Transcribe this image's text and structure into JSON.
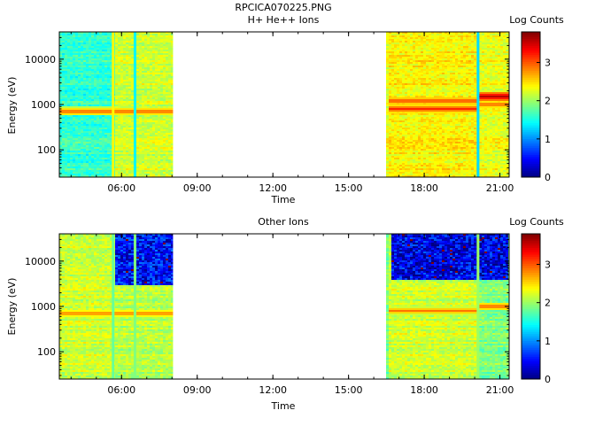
{
  "figure_title": "RPCICA070225.PNG",
  "colors": {
    "empty": "#ffffff",
    "axis": "#000000"
  },
  "chart_data": [
    {
      "type": "heatmap",
      "title": "H+ He++ Ions",
      "xlabel": "Time",
      "ylabel": "Energy (eV)",
      "xlim": [
        "03:32",
        "21:22"
      ],
      "x_ticks": [
        "06:00",
        "09:00",
        "12:00",
        "15:00",
        "18:00",
        "21:00"
      ],
      "ylim": [
        25,
        40000
      ],
      "yscale": "log",
      "y_ticks": [
        "100",
        "1000",
        "10000"
      ],
      "colorbar": {
        "label": "Log Counts",
        "range": [
          0,
          3.8
        ],
        "ticks": [
          "0",
          "1",
          "2",
          "3"
        ]
      },
      "data_intervals": [
        [
          "03:32",
          "08:01"
        ],
        [
          "16:30",
          "21:22"
        ]
      ],
      "background_level": {
        "03:32-05:40": 1.6,
        "05:40-08:01": 2.2,
        "16:30-20:10": 2.4,
        "20:10-21:22": 2.3
      },
      "bands": [
        {
          "from": "03:32",
          "to": "08:01",
          "energy_eV": 700,
          "level": 3.0
        },
        {
          "from": "16:30",
          "to": "20:10",
          "energy_eV": 1200,
          "level": 3.1
        },
        {
          "from": "16:30",
          "to": "20:10",
          "energy_eV": 800,
          "level": 3.2
        },
        {
          "from": "20:10",
          "to": "21:22",
          "energy_eV": 1500,
          "level": 3.6
        },
        {
          "from": "20:10",
          "to": "21:22",
          "energy_eV": 1000,
          "level": 3.0
        }
      ],
      "vertical_streaks": [
        {
          "time": "05:40",
          "level": 2.4
        },
        {
          "time": "06:32",
          "level": 1.4
        },
        {
          "time": "20:08",
          "level": 1.3
        }
      ]
    },
    {
      "type": "heatmap",
      "title": "Other Ions",
      "xlabel": "Time",
      "ylabel": "Energy (eV)",
      "xlim": [
        "03:32",
        "21:22"
      ],
      "x_ticks": [
        "06:00",
        "09:00",
        "12:00",
        "15:00",
        "18:00",
        "21:00"
      ],
      "ylim": [
        25,
        40000
      ],
      "yscale": "log",
      "y_ticks": [
        "100",
        "1000",
        "10000"
      ],
      "colorbar": {
        "label": "Log Counts",
        "range": [
          0,
          3.8
        ],
        "ticks": [
          "0",
          "1",
          "2",
          "3"
        ]
      },
      "data_intervals": [
        [
          "03:32",
          "08:01"
        ],
        [
          "16:30",
          "21:22"
        ]
      ],
      "background_level": {
        "03:32-05:40": 2.2,
        "05:40-08:01": 2.1,
        "16:30-20:10": 2.2,
        "20:10-21:22": 1.9
      },
      "high_energy_depletion": [
        {
          "from": "05:40",
          "to": "08:01",
          "above_eV": 3000,
          "level": 0.5
        },
        {
          "from": "16:40",
          "to": "21:15",
          "above_eV": 4000,
          "level": 0.4
        }
      ],
      "bands": [
        {
          "from": "03:32",
          "to": "08:01",
          "energy_eV": 700,
          "level": 2.9
        },
        {
          "from": "16:30",
          "to": "20:10",
          "energy_eV": 800,
          "level": 2.9
        },
        {
          "from": "20:10",
          "to": "21:22",
          "energy_eV": 1000,
          "level": 3.0
        }
      ],
      "vertical_streaks": [
        {
          "time": "05:40",
          "level": 1.8
        },
        {
          "time": "06:32",
          "level": 1.9
        },
        {
          "time": "20:08",
          "level": 2.0
        }
      ]
    }
  ]
}
